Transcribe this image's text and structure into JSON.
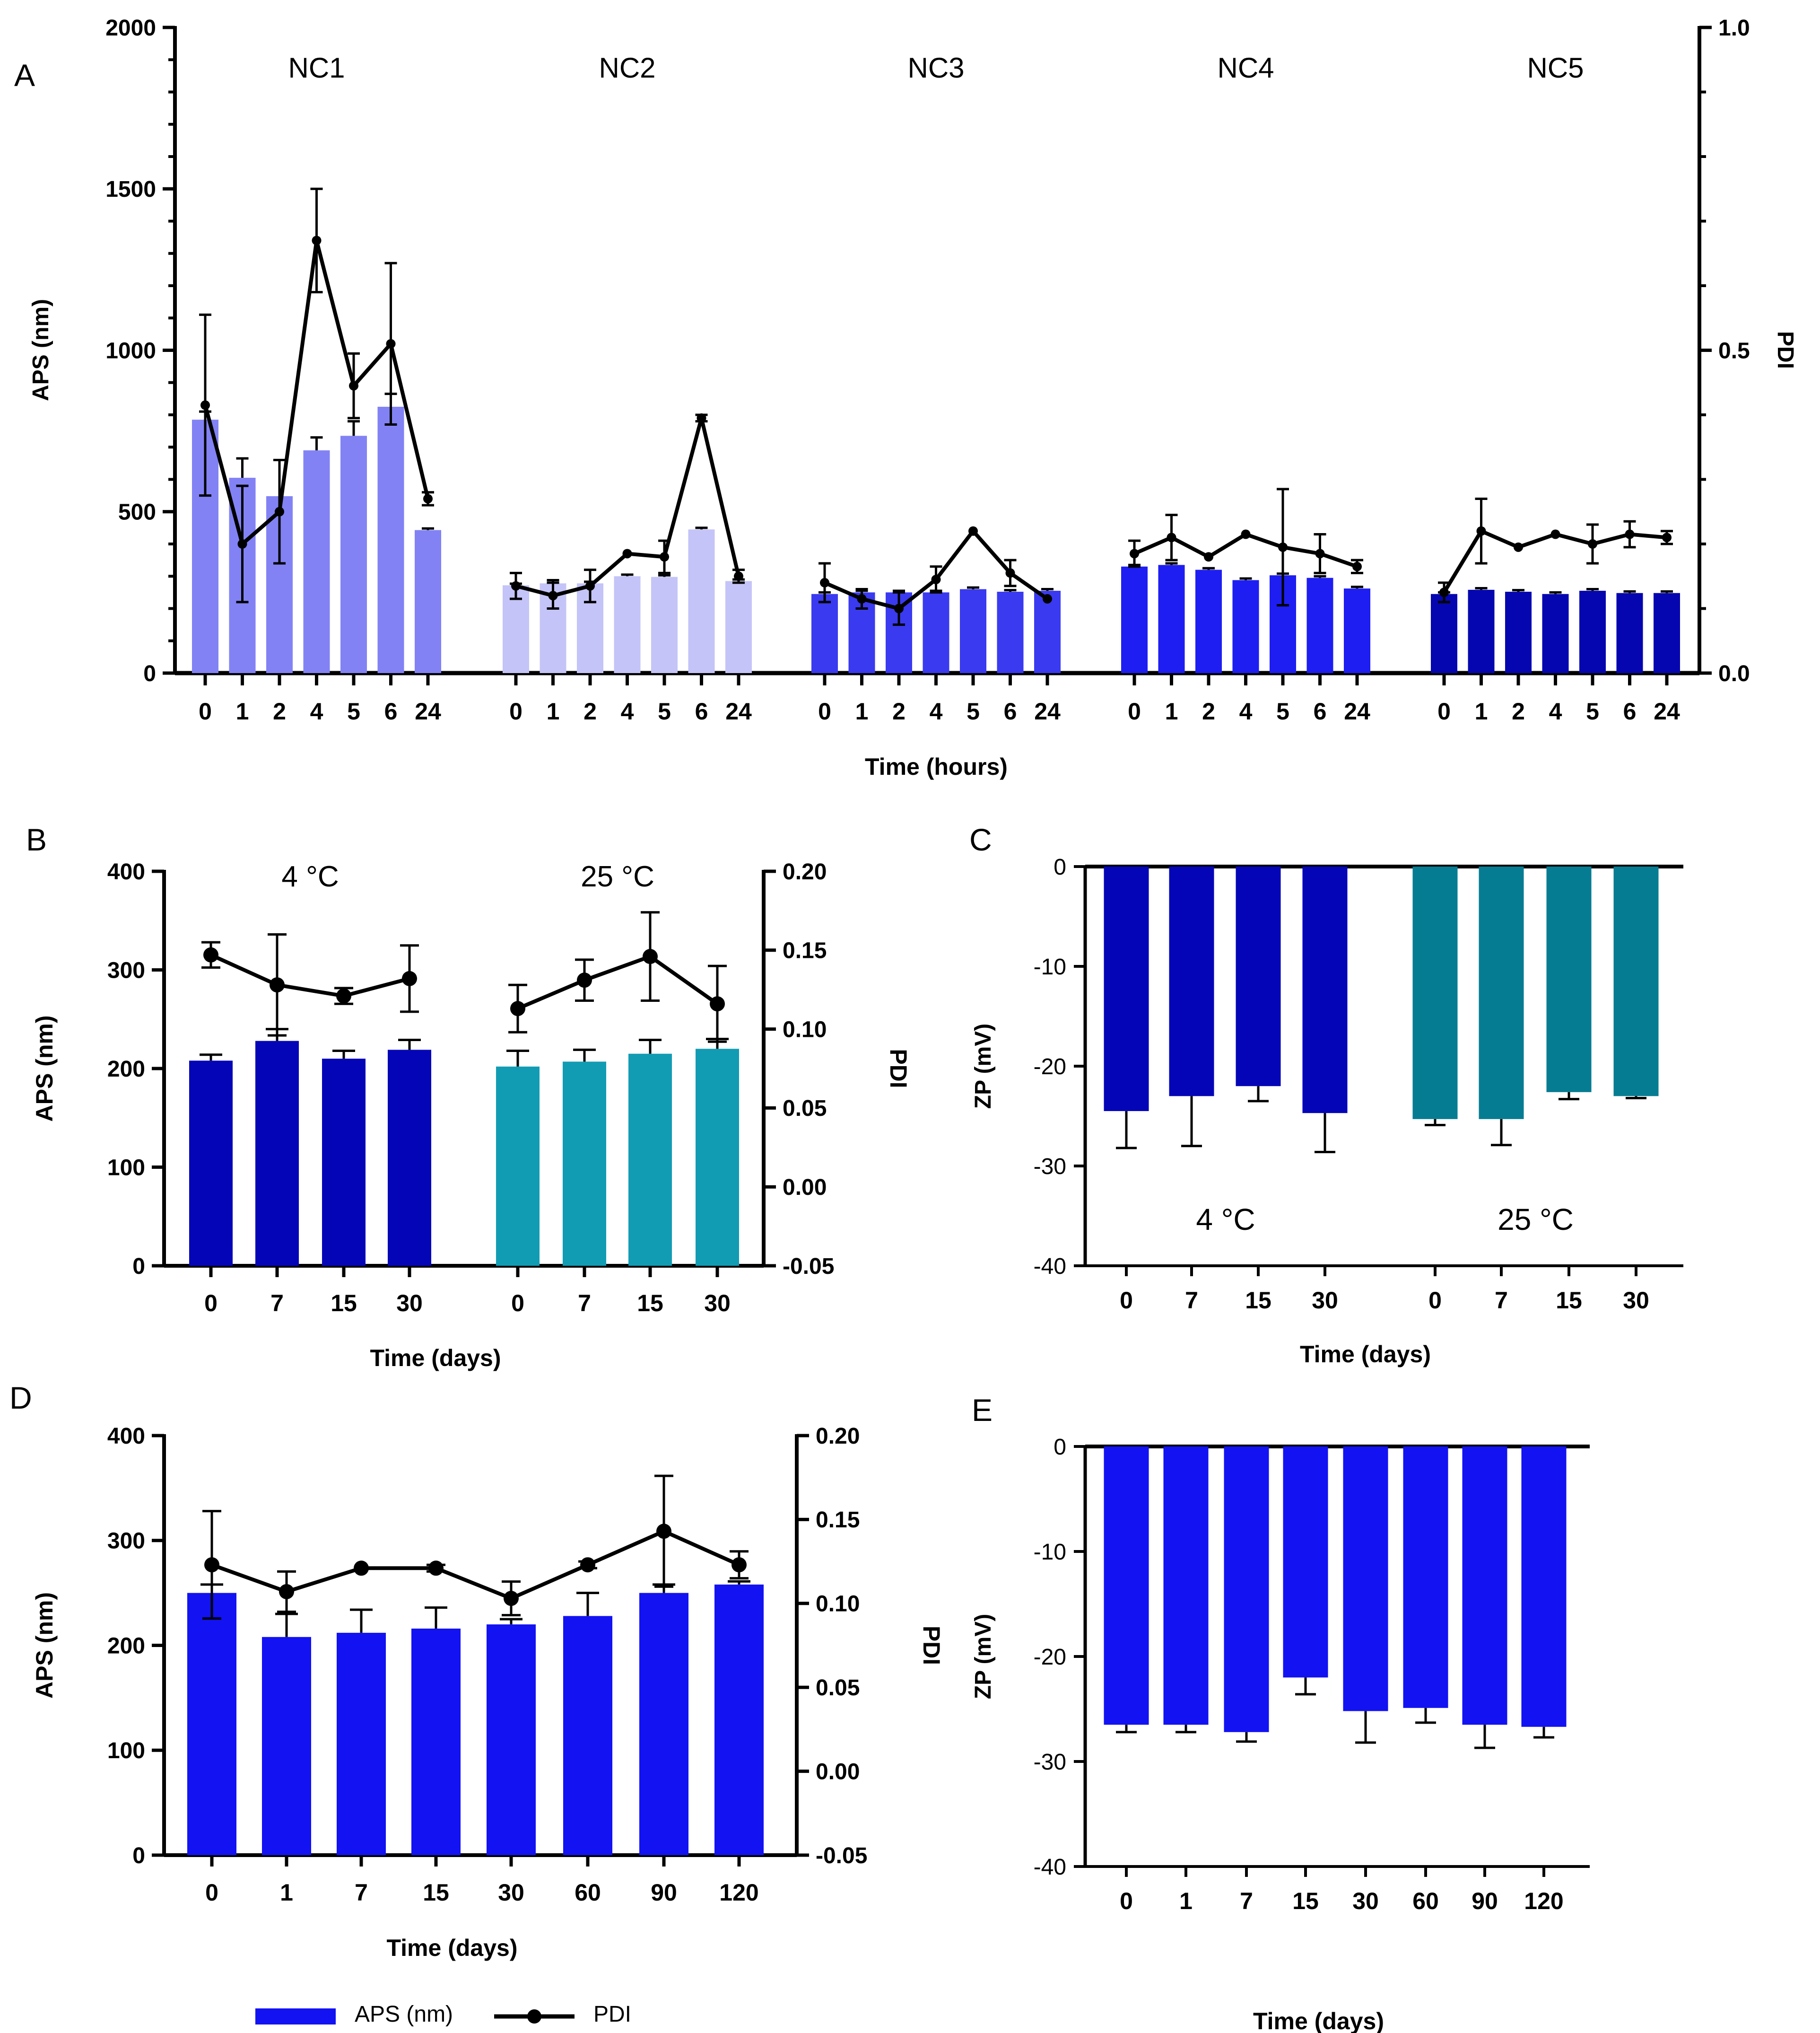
{
  "figure": {
    "colors": {
      "axis": "#000000",
      "pdi_line": "#000000",
      "nc1": "#8282f5",
      "nc2": "#c4c4f8",
      "nc3": "#3a3af0",
      "nc4": "#1e1ef2",
      "nc5": "#0606b0",
      "dark_blue": "#0505b8",
      "teal": "#129cb4",
      "teal_dark": "#067c92",
      "bright_blue": "#1212f2"
    }
  },
  "chart_data": [
    {
      "panel": "A",
      "type": "bar",
      "panel_label": "A",
      "xlabel": "Time (hours)",
      "ylabel": "APS (nm)",
      "y2label": "PDI",
      "ylim": [
        0,
        2000
      ],
      "y2lim": [
        0,
        1
      ],
      "yticks": [
        0,
        500,
        1000,
        1500,
        2000
      ],
      "y2ticks": [
        "0.0",
        "0.5",
        "1.0"
      ],
      "categories": [
        "0",
        "1",
        "2",
        "4",
        "5",
        "6",
        "24"
      ],
      "groups": [
        {
          "name": "NC1",
          "color_key": "nc1",
          "aps": [
            785,
            605,
            548,
            690,
            735,
            825,
            443
          ],
          "aps_err": [
            25,
            60,
            0,
            40,
            45,
            40,
            5
          ],
          "pdi": [
            0.415,
            0.2,
            0.25,
            0.67,
            0.445,
            0.51,
            0.27
          ],
          "pdi_err": [
            0.14,
            0.09,
            0.08,
            0.08,
            0.05,
            0.125,
            0.01
          ]
        },
        {
          "name": "NC2",
          "color_key": "nc2",
          "aps": [
            272,
            278,
            278,
            300,
            298,
            445,
            285
          ],
          "aps_err": [
            5,
            10,
            5,
            5,
            5,
            5,
            5
          ],
          "pdi": [
            0.135,
            0.12,
            0.135,
            0.185,
            0.18,
            0.395,
            0.15
          ],
          "pdi_err": [
            0.02,
            0.02,
            0.025,
            0,
            0.025,
            0.005,
            0.01
          ]
        },
        {
          "name": "NC3",
          "color_key": "nc3",
          "aps": [
            245,
            250,
            250,
            250,
            260,
            252,
            255
          ],
          "aps_err": [
            5,
            5,
            5,
            5,
            5,
            5,
            5
          ],
          "pdi": [
            0.14,
            0.115,
            0.1,
            0.145,
            0.22,
            0.155,
            0.115
          ],
          "pdi_err": [
            0.03,
            0.015,
            0.025,
            0.02,
            0,
            0.02,
            0
          ]
        },
        {
          "name": "NC4",
          "color_key": "nc4",
          "aps": [
            330,
            335,
            320,
            288,
            303,
            295,
            262
          ],
          "aps_err": [
            5,
            5,
            5,
            5,
            5,
            5,
            5
          ],
          "pdi": [
            0.185,
            0.21,
            0.18,
            0.215,
            0.195,
            0.185,
            0.165
          ],
          "pdi_err": [
            0.02,
            0.035,
            0,
            0,
            0.09,
            0.03,
            0.01
          ]
        },
        {
          "name": "NC5",
          "color_key": "nc5",
          "aps": [
            245,
            258,
            252,
            245,
            255,
            248,
            248
          ],
          "aps_err": [
            5,
            5,
            5,
            5,
            5,
            5,
            5
          ],
          "pdi": [
            0.125,
            0.22,
            0.195,
            0.215,
            0.2,
            0.215,
            0.21
          ],
          "pdi_err": [
            0.015,
            0.05,
            0,
            0,
            0.03,
            0.02,
            0.01
          ]
        }
      ]
    },
    {
      "panel": "B",
      "type": "bar",
      "panel_label": "B",
      "xlabel": "Time (days)",
      "ylabel": "APS (nm)",
      "y2label": "PDI",
      "ylim": [
        0,
        400
      ],
      "y2lim": [
        -0.05,
        0.2
      ],
      "yticks": [
        0,
        100,
        200,
        300,
        400
      ],
      "y2ticks": [
        "-0.05",
        "0.00",
        "0.05",
        "0.10",
        "0.15",
        "0.20"
      ],
      "categories": [
        "0",
        "7",
        "15",
        "30"
      ],
      "groups": [
        {
          "name": "4 °C",
          "color_key": "dark_blue",
          "aps": [
            208,
            228,
            210,
            219
          ],
          "aps_err": [
            6,
            12,
            8,
            10
          ],
          "pdi": [
            0.147,
            0.128,
            0.121,
            0.132
          ],
          "pdi_err": [
            0.008,
            0.032,
            0.005,
            0.021
          ]
        },
        {
          "name": "25 °C",
          "color_key": "teal",
          "aps": [
            202,
            207,
            215,
            220
          ],
          "aps_err": [
            16,
            12,
            14,
            10
          ],
          "pdi": [
            0.113,
            0.131,
            0.146,
            0.116
          ],
          "pdi_err": [
            0.015,
            0.013,
            0.028,
            0.024
          ]
        }
      ]
    },
    {
      "panel": "C",
      "type": "bar",
      "panel_label": "C",
      "xlabel": "Time (days)",
      "ylabel": "ZP (mV)",
      "ylim": [
        -40,
        0
      ],
      "yticks": [
        0,
        -10,
        -20,
        -30,
        -40
      ],
      "categories": [
        "0",
        "7",
        "15",
        "30"
      ],
      "groups": [
        {
          "name": "4 °C",
          "color_key": "dark_blue",
          "values": [
            -24.5,
            -23.0,
            -22.0,
            -24.7
          ],
          "err": [
            3.7,
            5.0,
            1.5,
            3.9
          ]
        },
        {
          "name": "25 °C",
          "color_key": "teal_dark",
          "values": [
            -25.3,
            -25.3,
            -22.6,
            -23.0
          ],
          "err": [
            0.6,
            2.6,
            0.7,
            0.2
          ]
        }
      ]
    },
    {
      "panel": "D",
      "type": "bar",
      "panel_label": "D",
      "xlabel": "Time (days)",
      "ylabel": "APS (nm)",
      "y2label": "PDI",
      "ylim": [
        0,
        400
      ],
      "y2lim": [
        -0.05,
        0.2
      ],
      "yticks": [
        0,
        100,
        200,
        300,
        400
      ],
      "y2ticks": [
        "-0.05",
        "0.00",
        "0.05",
        "0.10",
        "0.15",
        "0.20"
      ],
      "categories": [
        "0",
        "1",
        "7",
        "15",
        "30",
        "60",
        "90",
        "120"
      ],
      "color_key": "bright_blue",
      "aps": [
        250,
        208,
        212,
        216,
        220,
        228,
        250,
        258
      ],
      "aps_err": [
        8,
        22,
        22,
        20,
        5,
        22,
        8,
        3
      ],
      "pdi": [
        0.123,
        0.107,
        0.121,
        0.121,
        0.103,
        0.123,
        0.143,
        0.123
      ],
      "pdi_err": [
        0.032,
        0.012,
        0,
        0.002,
        0.01,
        0.002,
        0.033,
        0.008
      ]
    },
    {
      "panel": "E",
      "type": "bar",
      "panel_label": "E",
      "xlabel": "Time (days)",
      "ylabel": "ZP (mV)",
      "ylim": [
        -40,
        0
      ],
      "yticks": [
        0,
        -10,
        -20,
        -30,
        -40
      ],
      "categories": [
        "0",
        "1",
        "7",
        "15",
        "30",
        "60",
        "90",
        "120"
      ],
      "color_key": "bright_blue",
      "values": [
        -26.5,
        -26.5,
        -27.2,
        -22.0,
        -25.2,
        -24.9,
        -26.5,
        -26.7
      ],
      "err": [
        0.7,
        0.7,
        0.9,
        1.6,
        3.0,
        1.4,
        2.2,
        1.0
      ]
    }
  ],
  "legend": {
    "aps_label": "APS (nm)",
    "pdi_label": "PDI",
    "aps_color_key": "bright_blue"
  }
}
